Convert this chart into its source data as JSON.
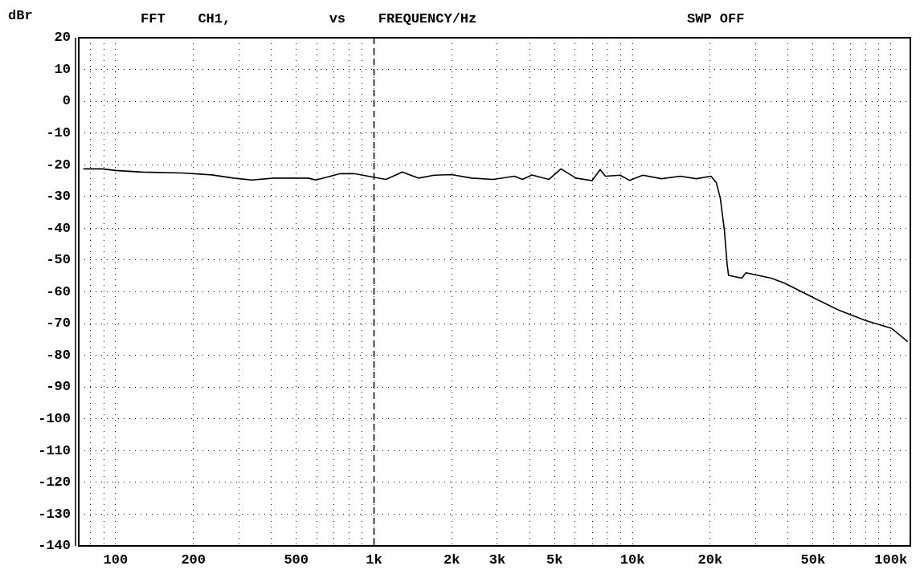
{
  "chart_data": {
    "type": "line",
    "title": "FFT    CH1,            vs    FREQUENCY/Hz",
    "ylabel": "dBr",
    "annotations": [
      "SWP OFF"
    ],
    "log": "x",
    "grid": true,
    "legend": false,
    "marker": "none",
    "line_style": "solid",
    "xlim": [
      72,
      119000
    ],
    "ylim": [
      -140,
      20
    ],
    "xticks": [
      {
        "value": 80,
        "label": null
      },
      {
        "value": 90,
        "label": null
      },
      100,
      200,
      {
        "value": 300,
        "label": null
      },
      {
        "value": 400,
        "label": null
      },
      500,
      {
        "value": 600,
        "label": null
      },
      {
        "value": 700,
        "label": null
      },
      {
        "value": 800,
        "label": null
      },
      {
        "value": 900,
        "label": null
      },
      {
        "value": 1000,
        "label": "1k"
      },
      {
        "value": 2000,
        "label": "2k"
      },
      {
        "value": 3000,
        "label": "3k"
      },
      {
        "value": 4000,
        "label": null
      },
      {
        "value": 5000,
        "label": "5k"
      },
      {
        "value": 6000,
        "label": null
      },
      {
        "value": 7000,
        "label": null
      },
      {
        "value": 8000,
        "label": null
      },
      {
        "value": 9000,
        "label": null
      },
      {
        "value": 10000,
        "label": "10k"
      },
      {
        "value": 20000,
        "label": "20k"
      },
      {
        "value": 30000,
        "label": null
      },
      {
        "value": 40000,
        "label": null
      },
      {
        "value": 50000,
        "label": "50k"
      },
      {
        "value": 60000,
        "label": null
      },
      {
        "value": 70000,
        "label": null
      },
      {
        "value": 80000,
        "label": null
      },
      {
        "value": 90000,
        "label": null
      },
      {
        "value": 100000,
        "label": "100k"
      }
    ],
    "yticks": [
      20,
      10,
      0,
      -10,
      -20,
      -30,
      -40,
      -50,
      -60,
      -70,
      -80,
      -90,
      -100,
      -110,
      -120,
      -130,
      -140
    ],
    "ref_lines": [
      {
        "axis": "x",
        "value": 1000,
        "line_style": "dashed",
        "color": "#000000"
      }
    ],
    "series": [
      {
        "color": "#000000",
        "x": [
          75,
          89,
          100,
          127,
          182,
          236,
          286,
          337,
          409,
          556,
          596,
          741,
          837,
          978,
          1112,
          1287,
          1487,
          1710,
          1996,
          2388,
          2888,
          3496,
          3753,
          4083,
          4754,
          5292,
          6049,
          6980,
          7497,
          7862,
          8964,
          9739,
          10972,
          12963,
          15323,
          17680,
          20150,
          21130,
          21900,
          22700,
          23260,
          23550,
          26500,
          27480,
          34440,
          38800,
          49260,
          62520,
          79400,
          100700,
          116200
        ],
        "values": [
          -21.3,
          -21.3,
          -21.8,
          -22.3,
          -22.6,
          -23.2,
          -24.2,
          -24.8,
          -24.2,
          -24.2,
          -24.8,
          -22.8,
          -22.8,
          -23.8,
          -24.6,
          -22.3,
          -24.2,
          -23.3,
          -23.1,
          -24.2,
          -24.6,
          -23.6,
          -24.6,
          -23.2,
          -24.6,
          -21.3,
          -24.2,
          -25.0,
          -21.5,
          -23.6,
          -23.3,
          -24.9,
          -23.3,
          -24.4,
          -23.6,
          -24.4,
          -23.6,
          -25.7,
          -30.7,
          -40.7,
          -51.5,
          -54.8,
          -55.7,
          -54,
          -55.7,
          -57.3,
          -61.5,
          -65.7,
          -69,
          -71.5,
          -75.7
        ]
      }
    ]
  }
}
